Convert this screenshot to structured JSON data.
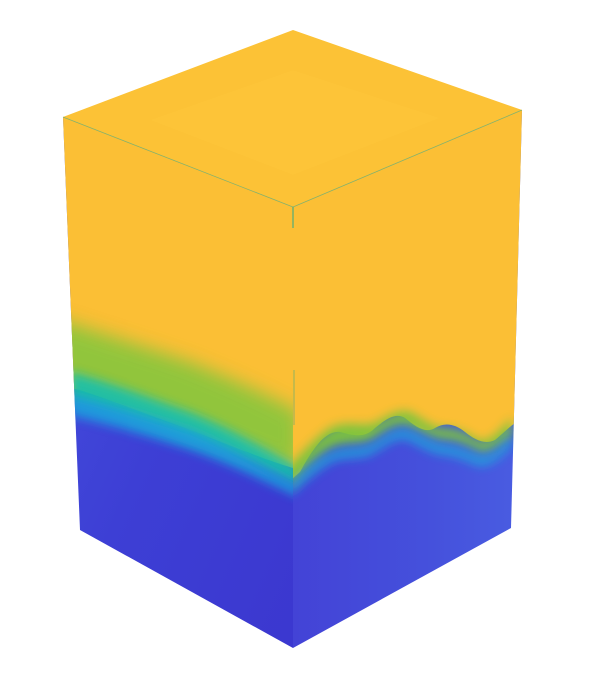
{
  "scene": {
    "colors": {
      "background": "#ffffff",
      "upper_fluid": "#fbbf35",
      "upper_fluid_top": "#fcc236",
      "interface_green": "#7cc640",
      "interface_teal": "#19c3a6",
      "interface_cyan": "#1fa9df",
      "lower_fluid_blue": "#4352dc",
      "lower_fluid_violet": "#3c36d2",
      "edge_line": "#2aa98b"
    }
  }
}
